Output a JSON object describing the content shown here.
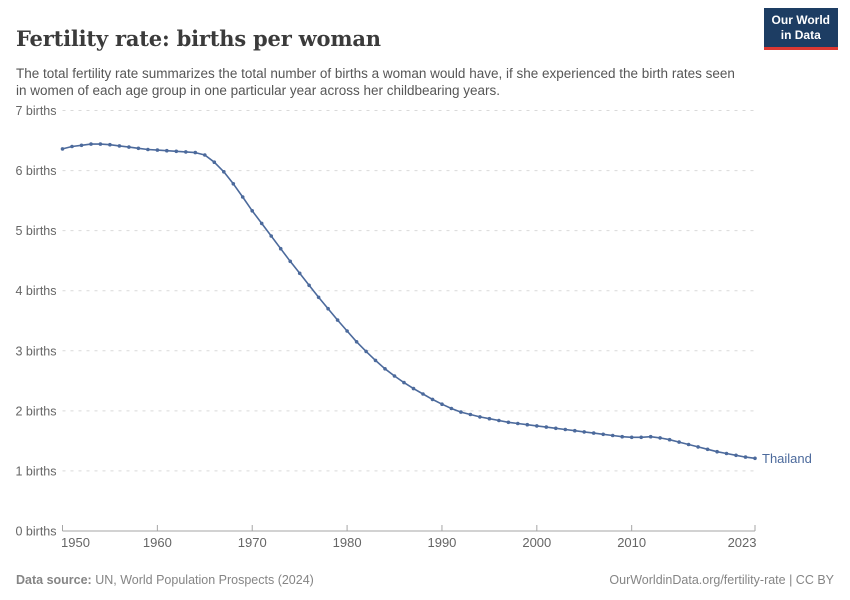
{
  "header": {
    "title": "Fertility rate: births per woman",
    "subtitle": "The total fertility rate summarizes the total number of births a woman would have, if she experienced the birth rates seen in women of each age group in one particular year across her childbearing years."
  },
  "logo": {
    "line1": "Our World",
    "line2": "in Data",
    "bg_color": "#1d3d63",
    "stripe_color": "#dc3832"
  },
  "chart_data": {
    "type": "line",
    "title": "Fertility rate: births per woman",
    "xlabel": "",
    "ylabel": "births",
    "xlim": [
      1950,
      2023
    ],
    "ylim": [
      0,
      7
    ],
    "grid": "horizontal-dashed",
    "legend_position": "end-of-line",
    "x_ticks": [
      {
        "value": 1950,
        "label": "1950"
      },
      {
        "value": 1960,
        "label": "1960"
      },
      {
        "value": 1970,
        "label": "1970"
      },
      {
        "value": 1980,
        "label": "1980"
      },
      {
        "value": 1990,
        "label": "1990"
      },
      {
        "value": 2000,
        "label": "2000"
      },
      {
        "value": 2010,
        "label": "2010"
      },
      {
        "value": 2023,
        "label": "2023"
      }
    ],
    "y_ticks": [
      {
        "value": 0,
        "label": "0 births"
      },
      {
        "value": 1,
        "label": "1 births"
      },
      {
        "value": 2,
        "label": "2 births"
      },
      {
        "value": 3,
        "label": "3 births"
      },
      {
        "value": 4,
        "label": "4 births"
      },
      {
        "value": 5,
        "label": "5 births"
      },
      {
        "value": 6,
        "label": "6 births"
      },
      {
        "value": 7,
        "label": "7 births"
      }
    ],
    "x": [
      1950,
      1951,
      1952,
      1953,
      1954,
      1955,
      1956,
      1957,
      1958,
      1959,
      1960,
      1961,
      1962,
      1963,
      1964,
      1965,
      1966,
      1967,
      1968,
      1969,
      1970,
      1971,
      1972,
      1973,
      1974,
      1975,
      1976,
      1977,
      1978,
      1979,
      1980,
      1981,
      1982,
      1983,
      1984,
      1985,
      1986,
      1987,
      1988,
      1989,
      1990,
      1991,
      1992,
      1993,
      1994,
      1995,
      1996,
      1997,
      1998,
      1999,
      2000,
      2001,
      2002,
      2003,
      2004,
      2005,
      2006,
      2007,
      2008,
      2009,
      2010,
      2011,
      2012,
      2013,
      2014,
      2015,
      2016,
      2017,
      2018,
      2019,
      2020,
      2021,
      2022,
      2023
    ],
    "series": [
      {
        "name": "Thailand",
        "color": "#4C6A9C",
        "values": [
          6.36,
          6.4,
          6.42,
          6.44,
          6.44,
          6.43,
          6.41,
          6.39,
          6.37,
          6.35,
          6.34,
          6.33,
          6.32,
          6.31,
          6.3,
          6.26,
          6.14,
          5.98,
          5.78,
          5.56,
          5.33,
          5.12,
          4.91,
          4.7,
          4.49,
          4.29,
          4.09,
          3.89,
          3.7,
          3.51,
          3.33,
          3.15,
          2.99,
          2.84,
          2.7,
          2.58,
          2.47,
          2.37,
          2.28,
          2.19,
          2.11,
          2.04,
          1.98,
          1.94,
          1.9,
          1.87,
          1.84,
          1.81,
          1.79,
          1.77,
          1.75,
          1.73,
          1.71,
          1.69,
          1.67,
          1.65,
          1.63,
          1.61,
          1.59,
          1.57,
          1.56,
          1.56,
          1.57,
          1.55,
          1.52,
          1.48,
          1.44,
          1.4,
          1.36,
          1.32,
          1.29,
          1.26,
          1.23,
          1.21
        ]
      }
    ],
    "colors": {
      "gridline": "#d9d9d9",
      "axis": "#a5a5a5",
      "tick_label": "#666666"
    }
  },
  "footer": {
    "source_label": "Data source:",
    "source_text": " UN, World Population Prospects (2024)",
    "link_text": "OurWorldinData.org/fertility-rate | CC BY"
  }
}
